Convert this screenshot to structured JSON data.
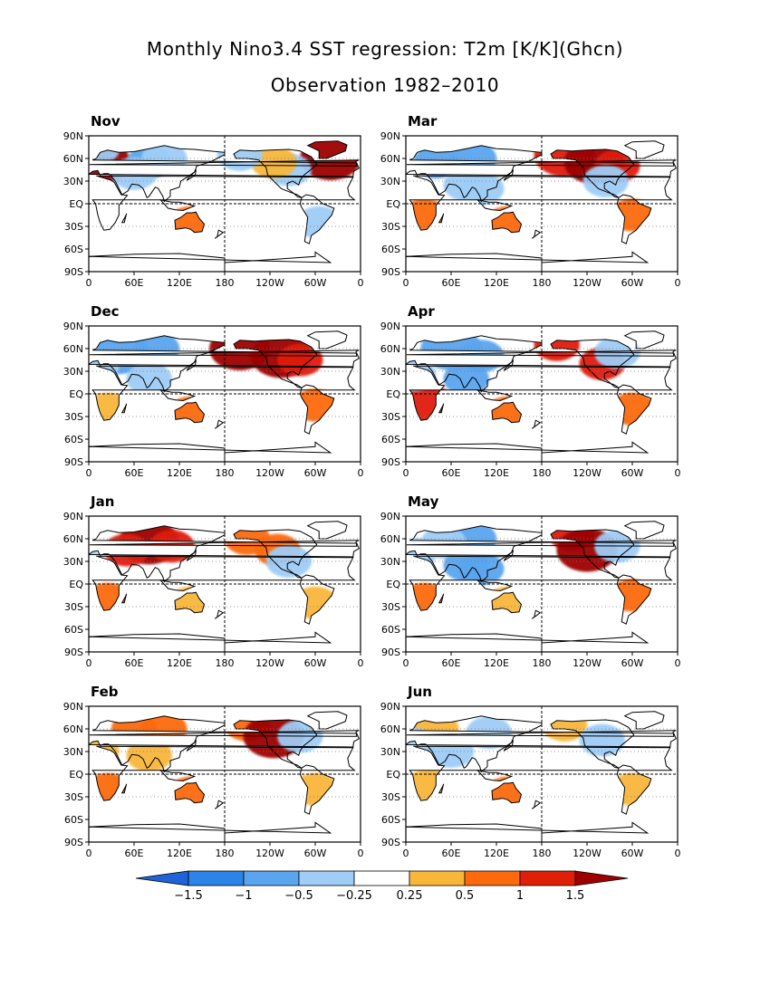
{
  "title": "Monthly Nino3.4 SST regression: T2m [K/K](Ghcn)",
  "subtitle": "Observation 1982–2010",
  "lat_labels": [
    "90N",
    "60N",
    "30N",
    "EQ",
    "30S",
    "60S",
    "90S"
  ],
  "lon_labels": [
    "0",
    "60E",
    "120E",
    "180",
    "120W",
    "60W",
    "0"
  ],
  "panels": [
    {
      "month": "Nov",
      "anoms": [
        [
          -40,
          60,
          2,
          3
        ],
        [
          15,
          55,
          2,
          3
        ],
        [
          80,
          55,
          -1,
          2
        ],
        [
          100,
          60,
          -0.5,
          2
        ],
        [
          60,
          40,
          -0.5,
          2
        ],
        [
          135,
          -25,
          0.8,
          2
        ],
        [
          -95,
          45,
          -0.5,
          2
        ],
        [
          -115,
          55,
          0.3,
          2
        ],
        [
          -55,
          -25,
          -0.4,
          2
        ],
        [
          20,
          70,
          -0.5,
          1
        ],
        [
          -160,
          65,
          -0.5,
          2
        ]
      ]
    },
    {
      "month": "Mar",
      "anoms": [
        [
          40,
          55,
          -1,
          2
        ],
        [
          90,
          60,
          -1,
          2
        ],
        [
          -150,
          65,
          1,
          3
        ],
        [
          -110,
          55,
          1.5,
          3
        ],
        [
          -80,
          50,
          1,
          2
        ],
        [
          25,
          -15,
          0.8,
          2
        ],
        [
          135,
          -25,
          0.6,
          2
        ],
        [
          -60,
          -15,
          0.7,
          2
        ],
        [
          -95,
          30,
          -0.5,
          2
        ],
        [
          80,
          25,
          -0.5,
          2
        ],
        [
          100,
          20,
          -0.4,
          2
        ]
      ]
    },
    {
      "month": "Dec",
      "anoms": [
        [
          40,
          55,
          -1,
          3
        ],
        [
          90,
          60,
          -0.7,
          2
        ],
        [
          -160,
          60,
          1.5,
          3
        ],
        [
          -105,
          50,
          2,
          3
        ],
        [
          -80,
          45,
          1,
          2
        ],
        [
          135,
          -25,
          0.6,
          2
        ],
        [
          25,
          -20,
          0.4,
          2
        ],
        [
          -60,
          -15,
          0.5,
          2
        ],
        [
          10,
          35,
          -0.5,
          2
        ],
        [
          80,
          20,
          -0.4,
          2
        ]
      ]
    },
    {
      "month": "Apr",
      "anoms": [
        [
          60,
          60,
          -0.7,
          3
        ],
        [
          100,
          50,
          -0.8,
          2
        ],
        [
          -160,
          65,
          1.3,
          2
        ],
        [
          -100,
          40,
          1,
          2
        ],
        [
          -80,
          55,
          -0.5,
          2
        ],
        [
          25,
          -15,
          1,
          3
        ],
        [
          135,
          -25,
          0.8,
          2
        ],
        [
          -60,
          -20,
          0.6,
          2
        ],
        [
          80,
          20,
          -0.6,
          2
        ],
        [
          10,
          25,
          -0.4,
          2
        ]
      ]
    },
    {
      "month": "Jan",
      "anoms": [
        [
          80,
          55,
          1.5,
          3
        ],
        [
          110,
          50,
          1,
          2
        ],
        [
          50,
          45,
          1,
          2
        ],
        [
          -110,
          45,
          0.6,
          2
        ],
        [
          -150,
          60,
          0.5,
          2
        ],
        [
          -95,
          30,
          -0.5,
          2
        ],
        [
          25,
          -20,
          0.5,
          2
        ],
        [
          135,
          -25,
          0.4,
          2
        ],
        [
          -60,
          -25,
          0.4,
          2
        ],
        [
          0,
          30,
          -0.3,
          1
        ]
      ]
    },
    {
      "month": "May",
      "anoms": [
        [
          90,
          60,
          -0.8,
          2
        ],
        [
          50,
          55,
          -0.5,
          2
        ],
        [
          -140,
          65,
          1.2,
          2
        ],
        [
          -120,
          45,
          1.5,
          3
        ],
        [
          -80,
          50,
          -0.5,
          2
        ],
        [
          80,
          25,
          -0.8,
          2
        ],
        [
          100,
          20,
          -0.6,
          2
        ],
        [
          25,
          -20,
          0.6,
          2
        ],
        [
          135,
          -25,
          0.4,
          2
        ],
        [
          -60,
          -15,
          0.7,
          2
        ],
        [
          10,
          40,
          -0.4,
          2
        ]
      ]
    },
    {
      "month": "Feb",
      "anoms": [
        [
          60,
          60,
          0.6,
          2
        ],
        [
          100,
          60,
          0.6,
          2
        ],
        [
          -150,
          65,
          0.8,
          2
        ],
        [
          -115,
          50,
          1.5,
          3
        ],
        [
          -80,
          50,
          -0.5,
          2
        ],
        [
          25,
          -20,
          0.6,
          2
        ],
        [
          135,
          -25,
          0.5,
          2
        ],
        [
          -60,
          -20,
          0.4,
          2
        ],
        [
          10,
          30,
          0.4,
          2
        ],
        [
          80,
          25,
          0.4,
          2
        ]
      ]
    },
    {
      "month": "Jun",
      "anoms": [
        [
          40,
          60,
          0.4,
          2
        ],
        [
          110,
          55,
          -0.5,
          2
        ],
        [
          -150,
          65,
          0.4,
          2
        ],
        [
          -100,
          45,
          -0.5,
          2
        ],
        [
          30,
          -15,
          0.4,
          2
        ],
        [
          135,
          -25,
          0.5,
          2
        ],
        [
          -60,
          -20,
          0.4,
          2
        ],
        [
          10,
          40,
          -0.3,
          2
        ],
        [
          60,
          30,
          -0.3,
          2
        ]
      ]
    }
  ],
  "colorbar": {
    "labels": [
      "−1.5",
      "−1",
      "−0.5",
      "−0.25",
      "0.25",
      "0.5",
      "1",
      "1.5"
    ],
    "levels": [
      -1.5,
      -1,
      -0.5,
      -0.25,
      0.25,
      0.5,
      1,
      1.5
    ],
    "colors": [
      "#1f63d6",
      "#2b84e8",
      "#5aa5ef",
      "#9fcdf7",
      "#ffffff",
      "#f9b73a",
      "#fd6a0b",
      "#e01f07",
      "#9e0000"
    ]
  },
  "colors": {
    "land_outline": "#000000",
    "background": "#ffffff"
  }
}
